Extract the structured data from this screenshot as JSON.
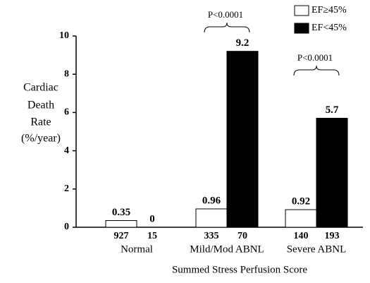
{
  "chart_data": {
    "type": "bar",
    "xlabel": "Summed Stress Perfusion Score",
    "ylabel": [
      "Cardiac",
      "Death",
      "Rate",
      "(%/year)"
    ],
    "categories": [
      "Normal",
      "Mild/Mod ABNL",
      "Severe ABNL"
    ],
    "series": [
      {
        "name": "EF≥45%",
        "color": "#ffffff",
        "values": [
          0.35,
          0.96,
          0.92
        ],
        "n": [
          927,
          335,
          140
        ]
      },
      {
        "name": "EF<45%",
        "color": "#000000",
        "values": [
          0,
          9.2,
          5.7
        ],
        "n": [
          15,
          70,
          193
        ]
      }
    ],
    "annotations": [
      "P<0.0001",
      "P<0.0001"
    ],
    "ylim": [
      0,
      10
    ],
    "yticks": [
      0,
      2,
      4,
      6,
      8,
      10
    ],
    "grid": false,
    "legend": "upper right"
  }
}
